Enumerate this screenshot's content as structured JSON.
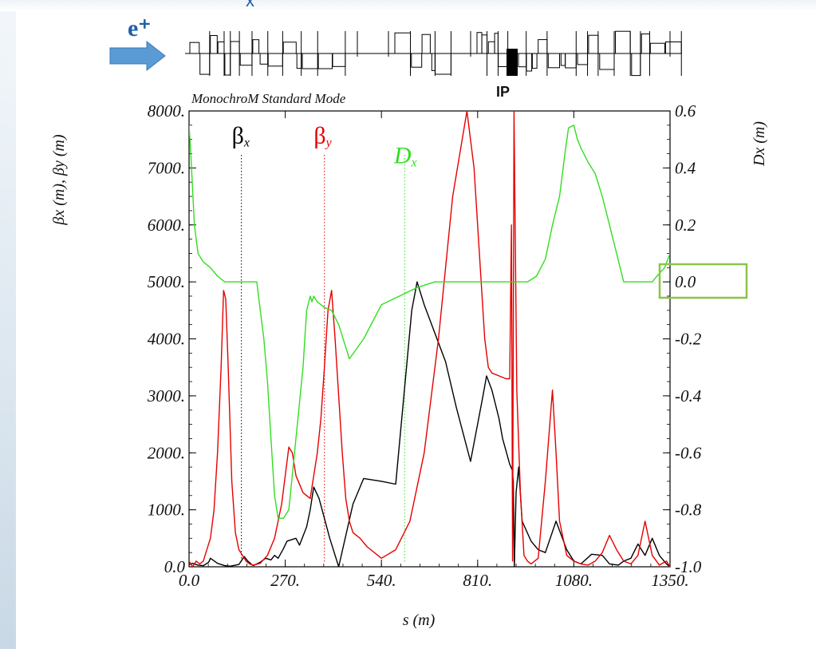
{
  "header": {
    "top_clip_char": "x",
    "particle_label": "e⁺",
    "beam_direction_icon": "arrow-right-icon",
    "ip_label": "IP",
    "mode_label": "MonochroM Standard Mode"
  },
  "colors": {
    "beta_x": "#000000",
    "beta_y": "#e60000",
    "dispersion": "#33dd22",
    "arrow": "#5b9bd5",
    "particle": "#1f5fa8",
    "highlight_box": "#8bc34a"
  },
  "chart_data": {
    "type": "line",
    "title": "MonochroM Standard Mode",
    "xlabel": "s (m)",
    "ylabel_left": "βx (m), βy (m)",
    "ylabel_right": "Dx (m)",
    "xlim": [
      0,
      1350
    ],
    "ylim_left": [
      0,
      8000
    ],
    "ylim_right": [
      -1.0,
      0.6
    ],
    "x_ticks": [
      "0.0",
      "270.",
      "540.",
      "810.",
      "1080.",
      "1350."
    ],
    "y_left_ticks": [
      "0.0",
      "1000.",
      "2000.",
      "3000.",
      "4000.",
      "5000.",
      "6000.",
      "7000.",
      "8000."
    ],
    "y_right_ticks": [
      "-1.0",
      "-0.8",
      "-0.6",
      "-0.4",
      "-0.2",
      "0.0",
      "0.2",
      "0.4",
      "0.6"
    ],
    "grid": false,
    "highlighted_tick": "0.0",
    "series": [
      {
        "name": "βx",
        "name_symbol": "β",
        "name_sub": "x",
        "axis": "left",
        "label_x": 120,
        "label_y": 7600,
        "marker_x": 147,
        "x": [
          0,
          10,
          25,
          40,
          55,
          60,
          80,
          100,
          115,
          140,
          155,
          165,
          180,
          200,
          215,
          230,
          240,
          250,
          265,
          275,
          300,
          310,
          330,
          340,
          350,
          365,
          395,
          420,
          460,
          490,
          540,
          580,
          625,
          640,
          660,
          690,
          720,
          750,
          790,
          825,
          835,
          850,
          870,
          880,
          900,
          907,
          910,
          913,
          918,
          925,
          935,
          960,
          980,
          1000,
          1030,
          1060,
          1080,
          1100,
          1130,
          1160,
          1180,
          1205,
          1220,
          1240,
          1260,
          1280,
          1300,
          1320,
          1340,
          1350
        ],
        "y": [
          40,
          60,
          30,
          20,
          80,
          150,
          60,
          20,
          10,
          40,
          180,
          100,
          20,
          80,
          150,
          120,
          200,
          150,
          320,
          450,
          500,
          380,
          700,
          1000,
          1400,
          1200,
          500,
          0,
          1100,
          1550,
          1500,
          1450,
          4500,
          5000,
          4600,
          4100,
          3600,
          2800,
          1850,
          3000,
          3350,
          3100,
          2600,
          2250,
          1800,
          1700,
          1500,
          0,
          1300,
          1750,
          800,
          450,
          300,
          250,
          800,
          300,
          100,
          50,
          220,
          200,
          50,
          30,
          100,
          150,
          400,
          200,
          500,
          200,
          50,
          0
        ]
      },
      {
        "name": "βy",
        "name_symbol": "β",
        "name_sub": "y",
        "axis": "left",
        "label_x": 350,
        "label_y": 7600,
        "marker_x": 380,
        "x": [
          0,
          10,
          20,
          30,
          40,
          50,
          60,
          70,
          80,
          90,
          97,
          103,
          110,
          120,
          130,
          140,
          150,
          160,
          170,
          180,
          200,
          220,
          240,
          260,
          270,
          280,
          290,
          300,
          320,
          340,
          360,
          370,
          380,
          390,
          400,
          410,
          420,
          430,
          440,
          450,
          460,
          480,
          500,
          540,
          580,
          620,
          660,
          700,
          740,
          780,
          800,
          815,
          830,
          840,
          850,
          870,
          890,
          900,
          905,
          908,
          912,
          920,
          930,
          940,
          950,
          960,
          980,
          1000,
          1020,
          1030,
          1040,
          1060,
          1080,
          1100,
          1120,
          1140,
          1160,
          1180,
          1200,
          1220,
          1240,
          1260,
          1280,
          1300,
          1320,
          1340,
          1350
        ],
        "y": [
          100,
          0,
          100,
          50,
          100,
          300,
          500,
          1000,
          2000,
          3500,
          4850,
          4700,
          3500,
          1500,
          600,
          300,
          200,
          100,
          50,
          30,
          60,
          200,
          500,
          1100,
          1600,
          2100,
          2000,
          1600,
          1300,
          1200,
          2000,
          2600,
          3500,
          4500,
          4850,
          4000,
          3000,
          2000,
          1200,
          800,
          600,
          500,
          350,
          150,
          300,
          800,
          2000,
          4000,
          6500,
          8000,
          7000,
          5500,
          4000,
          3500,
          3400,
          3350,
          3300,
          3300,
          6000,
          100,
          8000,
          3100,
          1300,
          200,
          100,
          50,
          150,
          1500,
          3100,
          2000,
          800,
          200,
          100,
          50,
          30,
          100,
          250,
          550,
          300,
          100,
          50,
          200,
          800,
          200,
          30,
          100,
          0
        ]
      },
      {
        "name": "Dx",
        "name_symbol": "D",
        "name_sub": "x",
        "axis": "right",
        "label_x": 575,
        "label_y": 0.45,
        "marker_x": 605,
        "x": [
          0,
          5,
          15,
          25,
          40,
          60,
          80,
          100,
          120,
          140,
          160,
          170,
          180,
          190,
          200,
          210,
          220,
          230,
          240,
          250,
          265,
          280,
          300,
          320,
          330,
          340,
          345,
          350,
          360,
          380,
          400,
          420,
          450,
          490,
          540,
          590,
          640,
          690,
          740,
          770,
          800,
          840,
          870,
          900,
          930,
          950,
          975,
          1000,
          1020,
          1040,
          1055,
          1065,
          1080,
          1090,
          1100,
          1120,
          1140,
          1160,
          1180,
          1200,
          1220,
          1240,
          1260,
          1280,
          1300,
          1320,
          1335,
          1350
        ],
        "y": [
          0.55,
          0.45,
          0.2,
          0.1,
          0.07,
          0.05,
          0.02,
          0.0,
          0.0,
          0.0,
          0.0,
          0.0,
          0.0,
          0.0,
          -0.1,
          -0.2,
          -0.35,
          -0.55,
          -0.75,
          -0.83,
          -0.83,
          -0.8,
          -0.55,
          -0.3,
          -0.1,
          -0.05,
          -0.07,
          -0.05,
          -0.07,
          -0.09,
          -0.1,
          -0.15,
          -0.27,
          -0.2,
          -0.08,
          -0.05,
          -0.02,
          0.0,
          0.0,
          0.0,
          0.0,
          0.0,
          0.0,
          0.0,
          0.0,
          0.0,
          0.02,
          0.08,
          0.2,
          0.3,
          0.45,
          0.54,
          0.55,
          0.5,
          0.47,
          0.42,
          0.38,
          0.3,
          0.2,
          0.1,
          0.0,
          0.0,
          0.0,
          0.0,
          0.0,
          0.03,
          0.05,
          0.1
        ]
      }
    ]
  }
}
